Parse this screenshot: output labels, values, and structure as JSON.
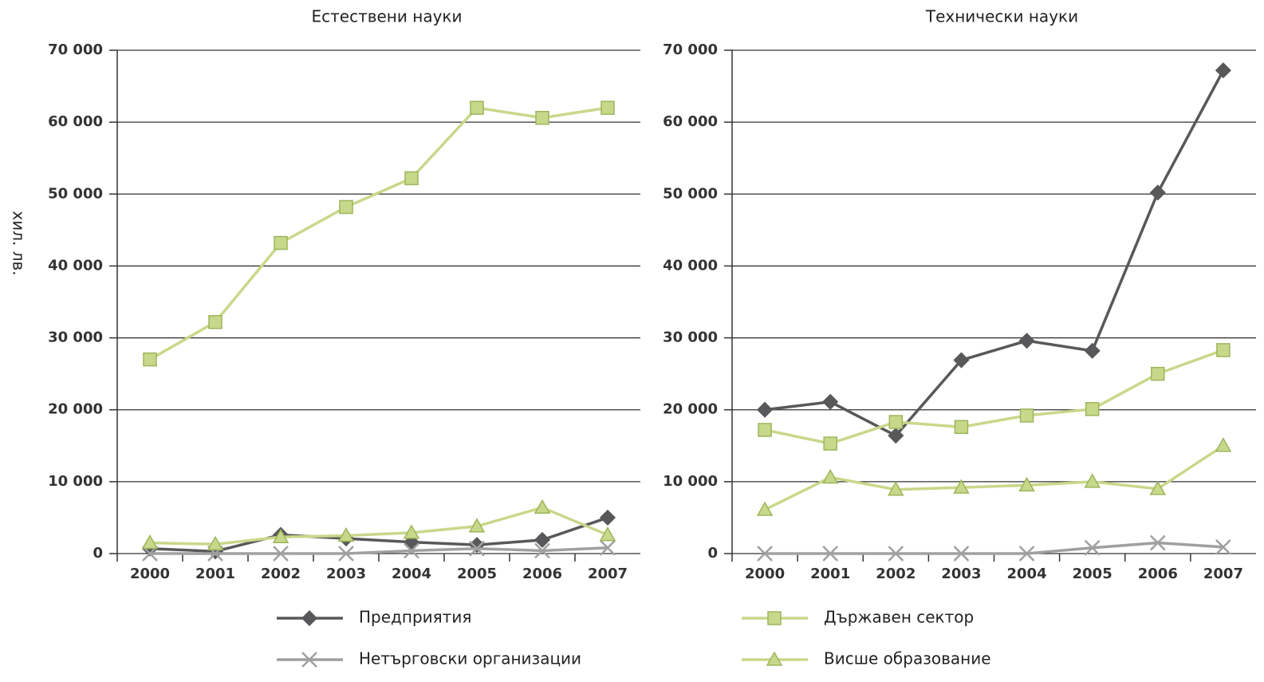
{
  "chart_data": [
    {
      "type": "line",
      "title": "Естествени науки",
      "y_label": "хил. лв.",
      "categories": [
        "2000",
        "2001",
        "2002",
        "2003",
        "2004",
        "2005",
        "2006",
        "2007"
      ],
      "ylim": [
        0,
        70000
      ],
      "yticks": [
        {
          "value": 0,
          "label": "0"
        },
        {
          "value": 10000,
          "label": "10 000"
        },
        {
          "value": 20000,
          "label": "20 000"
        },
        {
          "value": 30000,
          "label": "30 000"
        },
        {
          "value": 40000,
          "label": "40 000"
        },
        {
          "value": 50000,
          "label": "50 000"
        },
        {
          "value": 60000,
          "label": "60 000"
        },
        {
          "value": 70000,
          "label": "70 000"
        }
      ],
      "grid": true,
      "series": [
        {
          "name": "Предприятия",
          "color": "#58585a",
          "marker": "diamond",
          "values": [
            700,
            300,
            2600,
            2100,
            1600,
            1200,
            1900,
            5000
          ]
        },
        {
          "name": "Нетърговски организации",
          "color": "#a0a0a0",
          "marker": "cross",
          "values": [
            0,
            0,
            0,
            0,
            400,
            700,
            400,
            800
          ]
        },
        {
          "name": "Държавен сектор",
          "color": "#c8d88a",
          "marker": "square",
          "values": [
            27000,
            32200,
            43200,
            48200,
            52200,
            62000,
            60600,
            62000
          ]
        },
        {
          "name": "Висше образование",
          "color": "#c8d88a",
          "marker": "triangle",
          "values": [
            1500,
            1300,
            2300,
            2500,
            2900,
            3800,
            6400,
            2600
          ]
        }
      ]
    },
    {
      "type": "line",
      "title": "Технически науки",
      "categories": [
        "2000",
        "2001",
        "2002",
        "2003",
        "2004",
        "2005",
        "2006",
        "2007"
      ],
      "ylim": [
        0,
        70000
      ],
      "yticks": [
        {
          "value": 0,
          "label": "0"
        },
        {
          "value": 10000,
          "label": "10 000"
        },
        {
          "value": 20000,
          "label": "20 000"
        },
        {
          "value": 30000,
          "label": "30 000"
        },
        {
          "value": 40000,
          "label": "40 000"
        },
        {
          "value": 50000,
          "label": "50 000"
        },
        {
          "value": 60000,
          "label": "60 000"
        },
        {
          "value": 70000,
          "label": "70 000"
        }
      ],
      "grid": true,
      "series": [
        {
          "name": "Предприятия",
          "color": "#58585a",
          "marker": "diamond",
          "values": [
            20000,
            21100,
            16400,
            26900,
            29600,
            28200,
            50200,
            67200
          ]
        },
        {
          "name": "Нетърговски организации",
          "color": "#a0a0a0",
          "marker": "cross",
          "values": [
            0,
            0,
            0,
            0,
            0,
            800,
            1500,
            900
          ]
        },
        {
          "name": "Държавен сектор",
          "color": "#c8d88a",
          "marker": "square",
          "values": [
            17200,
            15300,
            18300,
            17600,
            19200,
            20100,
            25000,
            28300
          ]
        },
        {
          "name": "Висше образование",
          "color": "#c8d88a",
          "marker": "triangle",
          "values": [
            6100,
            10600,
            8900,
            9200,
            9500,
            10000,
            9000,
            15000
          ]
        }
      ]
    }
  ]
}
